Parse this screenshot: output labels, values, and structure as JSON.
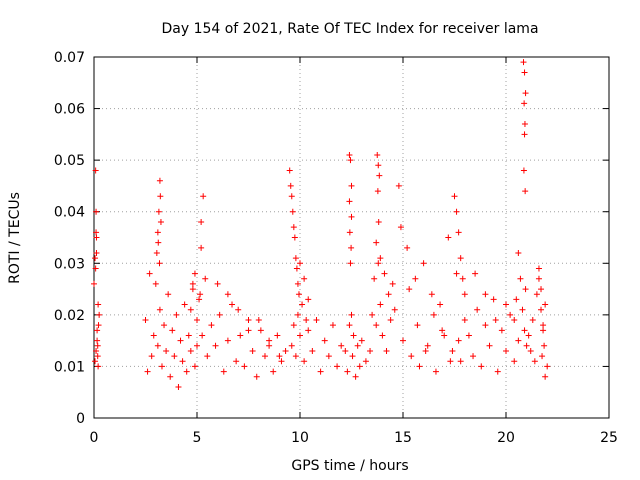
{
  "chart_data": {
    "type": "scatter",
    "title": "Day 154 of 2021, Rate Of TEC Index for receiver lama",
    "xlabel": "GPS time / hours",
    "ylabel": "ROTI / TECUs",
    "xlim": [
      0,
      25
    ],
    "ylim": [
      0,
      0.07
    ],
    "xticks": [
      0,
      5,
      10,
      15,
      20,
      25
    ],
    "xtick_labels": [
      "0",
      "5",
      "10",
      "15",
      "20",
      "25"
    ],
    "yticks": [
      0,
      0.01,
      0.02,
      0.03,
      0.04,
      0.05,
      0.06,
      0.07
    ],
    "ytick_labels": [
      "0",
      "0.01",
      "0.02",
      "0.03",
      "0.04",
      "0.05",
      "0.06",
      "0.07"
    ],
    "grid": true,
    "marker": "plus",
    "color": "#ff0000",
    "series": [
      {
        "x": [
          0.0,
          0.05,
          0.08,
          0.1,
          0.12,
          0.15,
          0.18,
          0.2,
          0.22,
          0.25,
          0.05,
          0.1,
          0.15,
          0.2,
          0.08,
          0.12,
          0.18,
          0.1,
          2.5,
          2.6,
          2.7,
          2.8,
          2.9,
          3.0,
          3.1,
          3.2,
          3.3,
          3.4,
          3.5,
          3.6,
          3.7,
          3.8,
          3.9,
          4.0,
          4.1,
          4.2,
          4.3,
          4.4,
          4.5,
          4.6,
          4.7,
          4.8,
          4.9,
          5.0,
          3.05,
          3.1,
          3.15,
          3.2,
          3.25,
          3.18,
          3.22,
          3.12,
          4.7,
          4.8,
          4.9,
          5.0,
          5.1,
          5.2,
          5.3,
          5.4,
          5.2,
          5.25,
          5.15,
          5.5,
          5.7,
          5.9,
          6.1,
          6.3,
          6.5,
          6.7,
          6.9,
          7.1,
          7.3,
          7.5,
          7.7,
          7.9,
          8.1,
          8.3,
          8.5,
          8.7,
          8.9,
          9.1,
          9.3,
          6.0,
          6.5,
          7.0,
          7.5,
          8.0,
          8.5,
          9.0,
          9.5,
          9.55,
          9.6,
          9.65,
          9.7,
          9.75,
          9.8,
          9.85,
          9.9,
          9.95,
          10.0,
          10.1,
          10.2,
          10.3,
          10.4,
          9.6,
          9.7,
          9.8,
          9.9,
          10.0,
          10.2,
          10.4,
          10.6,
          10.8,
          11.0,
          11.2,
          11.4,
          11.6,
          11.8,
          12.0,
          12.2,
          12.3,
          12.4,
          12.45,
          12.5,
          12.55,
          12.6,
          12.7,
          12.8,
          12.9,
          13.0,
          13.2,
          13.4,
          12.4,
          12.45,
          12.5,
          12.4,
          12.5,
          12.42,
          12.48,
          13.5,
          13.6,
          13.7,
          13.8,
          13.9,
          14.0,
          14.1,
          14.2,
          14.3,
          14.4,
          14.5,
          13.75,
          13.8,
          13.85,
          13.78,
          13.82,
          13.7,
          13.9,
          14.6,
          14.8,
          15.0,
          15.2,
          15.4,
          15.6,
          15.8,
          16.0,
          16.2,
          16.4,
          16.6,
          16.8,
          17.0,
          17.2,
          17.4,
          17.6,
          17.8,
          18.0,
          14.9,
          15.3,
          15.7,
          16.1,
          16.5,
          16.9,
          17.3,
          17.7,
          17.5,
          17.6,
          17.7,
          17.8,
          17.9,
          18.0,
          18.2,
          18.4,
          18.6,
          18.8,
          19.0,
          19.2,
          19.4,
          19.6,
          19.8,
          20.0,
          20.2,
          20.4,
          20.6,
          18.5,
          19.0,
          19.5,
          20.0,
          20.4,
          20.5,
          20.6,
          20.7,
          20.8,
          20.9,
          20.95,
          21.0,
          20.85,
          20.9,
          20.95,
          20.88,
          20.92,
          20.9,
          20.87,
          20.93,
          21.1,
          21.2,
          21.3,
          21.4,
          21.5,
          21.6,
          21.7,
          21.8,
          21.9,
          22.0,
          21.6,
          21.7,
          21.8,
          21.9,
          21.75,
          21.85
        ],
        "y": [
          0.026,
          0.031,
          0.048,
          0.04,
          0.035,
          0.015,
          0.012,
          0.022,
          0.018,
          0.02,
          0.011,
          0.013,
          0.017,
          0.01,
          0.029,
          0.032,
          0.014,
          0.036,
          0.019,
          0.009,
          0.028,
          0.012,
          0.016,
          0.026,
          0.014,
          0.021,
          0.01,
          0.018,
          0.013,
          0.024,
          0.008,
          0.017,
          0.012,
          0.02,
          0.006,
          0.015,
          0.011,
          0.022,
          0.009,
          0.016,
          0.013,
          0.025,
          0.01,
          0.014,
          0.032,
          0.036,
          0.04,
          0.046,
          0.038,
          0.03,
          0.043,
          0.034,
          0.021,
          0.026,
          0.028,
          0.019,
          0.023,
          0.038,
          0.043,
          0.027,
          0.033,
          0.016,
          0.024,
          0.012,
          0.018,
          0.014,
          0.02,
          0.009,
          0.015,
          0.022,
          0.011,
          0.016,
          0.01,
          0.019,
          0.013,
          0.008,
          0.017,
          0.012,
          0.014,
          0.009,
          0.016,
          0.011,
          0.013,
          0.026,
          0.024,
          0.021,
          0.017,
          0.019,
          0.015,
          0.012,
          0.048,
          0.045,
          0.043,
          0.04,
          0.037,
          0.035,
          0.031,
          0.029,
          0.026,
          0.024,
          0.03,
          0.022,
          0.027,
          0.019,
          0.023,
          0.014,
          0.018,
          0.012,
          0.02,
          0.016,
          0.011,
          0.017,
          0.013,
          0.019,
          0.009,
          0.015,
          0.012,
          0.018,
          0.01,
          0.014,
          0.013,
          0.009,
          0.018,
          0.03,
          0.02,
          0.012,
          0.016,
          0.008,
          0.014,
          0.01,
          0.015,
          0.011,
          0.013,
          0.051,
          0.05,
          0.045,
          0.042,
          0.039,
          0.036,
          0.033,
          0.02,
          0.027,
          0.018,
          0.03,
          0.022,
          0.016,
          0.028,
          0.013,
          0.024,
          0.019,
          0.026,
          0.051,
          0.049,
          0.047,
          0.044,
          0.038,
          0.034,
          0.031,
          0.021,
          0.045,
          0.015,
          0.033,
          0.012,
          0.027,
          0.01,
          0.03,
          0.014,
          0.024,
          0.009,
          0.022,
          0.016,
          0.035,
          0.013,
          0.028,
          0.011,
          0.019,
          0.037,
          0.025,
          0.018,
          0.013,
          0.02,
          0.017,
          0.011,
          0.015,
          0.043,
          0.04,
          0.036,
          0.031,
          0.027,
          0.024,
          0.016,
          0.012,
          0.021,
          0.01,
          0.018,
          0.014,
          0.023,
          0.009,
          0.017,
          0.013,
          0.02,
          0.011,
          0.015,
          0.028,
          0.024,
          0.019,
          0.022,
          0.019,
          0.023,
          0.032,
          0.027,
          0.021,
          0.017,
          0.025,
          0.014,
          0.069,
          0.067,
          0.063,
          0.061,
          0.057,
          0.055,
          0.048,
          0.044,
          0.016,
          0.013,
          0.019,
          0.011,
          0.024,
          0.027,
          0.021,
          0.017,
          0.008,
          0.01,
          0.029,
          0.025,
          0.018,
          0.022,
          0.012,
          0.014
        ]
      }
    ]
  }
}
